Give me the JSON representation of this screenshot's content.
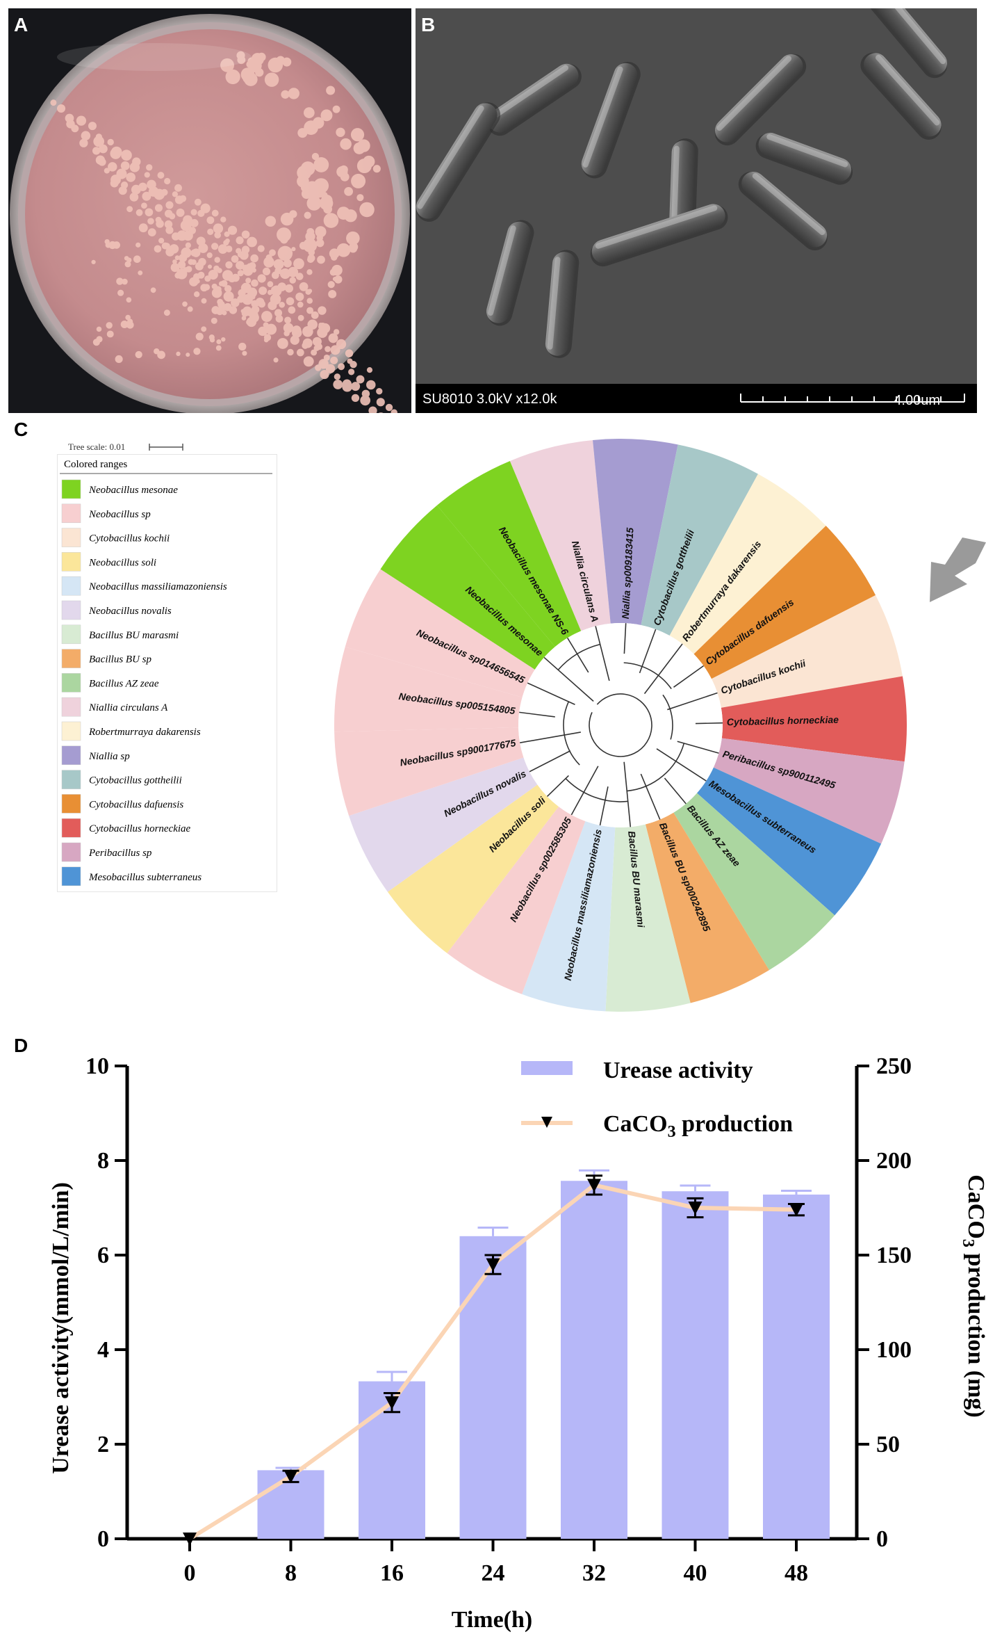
{
  "panels": {
    "a": "A",
    "b": "B",
    "c": "C",
    "d": "D"
  },
  "sem": {
    "info": "SU8010 3.0kV x12.0k",
    "scale": "4.00um"
  },
  "tree": {
    "scale_label": "Tree scale: 0.01",
    "legend_title": "Colored ranges",
    "legend": [
      {
        "name": "Neobacillus mesonae",
        "color": "#7ed321"
      },
      {
        "name": "Neobacillus sp",
        "color": "#f7cfd0"
      },
      {
        "name": "Cytobacillus kochii",
        "color": "#fbe5d3"
      },
      {
        "name": "Neobacillus soli",
        "color": "#fbe69a"
      },
      {
        "name": "Neobacillus massiliamazoniensis",
        "color": "#d5e6f5"
      },
      {
        "name": "Neobacillus novalis",
        "color": "#e2d8ec"
      },
      {
        "name": "Bacillus BU marasmi",
        "color": "#d8ebd3"
      },
      {
        "name": "Bacillus BU sp",
        "color": "#f3ac68"
      },
      {
        "name": "Bacillus AZ zeae",
        "color": "#abd6a0"
      },
      {
        "name": "Niallia circulans A",
        "color": "#efd2dc"
      },
      {
        "name": "Robertmurraya dakarensis",
        "color": "#fdf1d3"
      },
      {
        "name": "Niallia sp",
        "color": "#a59cd1"
      },
      {
        "name": "Cytobacillus gottheilii",
        "color": "#a7c8c8"
      },
      {
        "name": "Cytobacillus dafuensis",
        "color": "#e88f34"
      },
      {
        "name": "Cytobacillus horneckiae",
        "color": "#e25c5a"
      },
      {
        "name": "Peribacillus sp",
        "color": "#d7a7c2"
      },
      {
        "name": "Mesobacillus subterraneus",
        "color": "#4f94d6"
      }
    ],
    "leaves": [
      {
        "label": "Neobacillus mesonae",
        "color": "#7ed321"
      },
      {
        "label": "Neobacillus mesonae NS-6",
        "color": "#7ed321"
      },
      {
        "label": "Niallia circulans A",
        "color": "#efd2dc"
      },
      {
        "label": "Niallia sp009183415",
        "color": "#a59cd1"
      },
      {
        "label": "Cytobacillus gottheilii",
        "color": "#a7c8c8"
      },
      {
        "label": "Robertmurraya dakarensis",
        "color": "#fdf1d3"
      },
      {
        "label": "Cytobacillus dafuensis",
        "color": "#e88f34"
      },
      {
        "label": "Cytobacillus kochii",
        "color": "#fbe5d3"
      },
      {
        "label": "Cytobacillus horneckiae",
        "color": "#e25c5a"
      },
      {
        "label": "Peribacillus sp900112495",
        "color": "#d7a7c2"
      },
      {
        "label": "Mesobacillus subterraneus",
        "color": "#4f94d6"
      },
      {
        "label": "Bacillus AZ zeae",
        "color": "#abd6a0"
      },
      {
        "label": "Bacillus BU sp000242895",
        "color": "#f3ac68"
      },
      {
        "label": "Bacillus BU marasmi",
        "color": "#d8ebd3"
      },
      {
        "label": "Neobacillus massiliamazoniensis",
        "color": "#d5e6f5"
      },
      {
        "label": "Neobacillus sp002585305",
        "color": "#f7cfd0"
      },
      {
        "label": "Neobacillus soli",
        "color": "#fbe69a"
      },
      {
        "label": "Neobacillus novalis",
        "color": "#e2d8ec"
      },
      {
        "label": "Neobacillus sp900177675",
        "color": "#f7cfd0"
      },
      {
        "label": "Neobacillus sp005154805",
        "color": "#f7cfd0"
      },
      {
        "label": "Neobacillus sp014656545",
        "color": "#f7cfd0"
      }
    ]
  },
  "chart_data": {
    "type": "bar",
    "title": "",
    "xlabel": "Time(h)",
    "ylabel": "Urease activity(mmol/L/min)",
    "y2label_main": "CaCO",
    "y2label_sub": "3",
    "y2label_rest": " production (mg)",
    "categories": [
      "0",
      "8",
      "16",
      "24",
      "32",
      "40",
      "48"
    ],
    "ylim": [
      0,
      10
    ],
    "y_ticks": [
      "0",
      "2",
      "4",
      "6",
      "8",
      "10"
    ],
    "y2lim": [
      0,
      250
    ],
    "y2_ticks": [
      "0",
      "50",
      "100",
      "150",
      "200",
      "250"
    ],
    "series": [
      {
        "name": "Urease activity",
        "axis": "left",
        "type": "bar",
        "color": "#b6b7f8",
        "values": [
          0,
          1.45,
          3.33,
          6.4,
          7.57,
          7.35,
          7.28
        ],
        "errors": [
          0,
          0.05,
          0.2,
          0.18,
          0.22,
          0.12,
          0.08
        ]
      },
      {
        "name": "CaCO3 production",
        "axis": "right",
        "type": "line",
        "color": "#fbd5b5",
        "marker": "down-triangle",
        "values": [
          0,
          33,
          72,
          145,
          187,
          175,
          174
        ],
        "errors": [
          0,
          3,
          5,
          5,
          5,
          5,
          3
        ]
      }
    ],
    "legend": {
      "urease": "Urease activity",
      "caco3_main": "CaCO",
      "caco3_sub": "3",
      "caco3_rest": " production"
    }
  }
}
